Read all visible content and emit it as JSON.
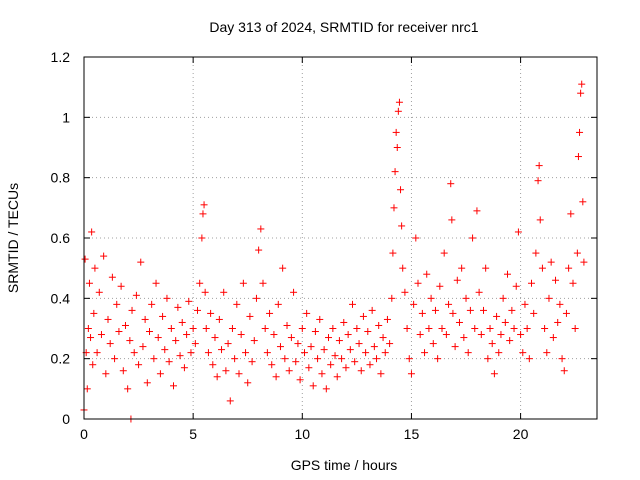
{
  "chart_data": {
    "type": "scatter",
    "title": "Day 313 of 2024, SRMTID for receiver nrc1",
    "xlabel": "GPS time / hours",
    "ylabel": "SRMTID / TECUs",
    "xlim": [
      0,
      23.5
    ],
    "ylim": [
      0,
      1.2
    ],
    "xticks": [
      0,
      5,
      10,
      15,
      20
    ],
    "yticks": [
      0,
      0.2,
      0.4,
      0.6,
      0.8,
      1,
      1.2
    ],
    "xtick_labels": [
      "0",
      "5",
      "10",
      "15",
      "20"
    ],
    "ytick_labels": [
      "0",
      "0.2",
      "0.4",
      "0.6",
      "0.8",
      "1",
      "1.2"
    ],
    "grid": true,
    "marker": "+",
    "color": "#ff0000",
    "series": [
      {
        "name": "SRMTID",
        "points": [
          [
            0.0,
            0.03
          ],
          [
            0.05,
            0.53
          ],
          [
            0.1,
            0.22
          ],
          [
            0.15,
            0.1
          ],
          [
            0.2,
            0.3
          ],
          [
            0.25,
            0.45
          ],
          [
            0.3,
            0.27
          ],
          [
            0.35,
            0.62
          ],
          [
            0.4,
            0.18
          ],
          [
            0.45,
            0.35
          ],
          [
            0.5,
            0.5
          ],
          [
            0.6,
            0.22
          ],
          [
            0.7,
            0.42
          ],
          [
            0.8,
            0.28
          ],
          [
            0.9,
            0.54
          ],
          [
            1.0,
            0.15
          ],
          [
            1.1,
            0.33
          ],
          [
            1.2,
            0.25
          ],
          [
            1.3,
            0.47
          ],
          [
            1.4,
            0.2
          ],
          [
            1.5,
            0.38
          ],
          [
            1.6,
            0.29
          ],
          [
            1.7,
            0.44
          ],
          [
            1.8,
            0.16
          ],
          [
            1.9,
            0.31
          ],
          [
            2.0,
            0.1
          ],
          [
            2.1,
            0.26
          ],
          [
            2.15,
            0.0
          ],
          [
            2.2,
            0.36
          ],
          [
            2.3,
            0.22
          ],
          [
            2.4,
            0.41
          ],
          [
            2.5,
            0.18
          ],
          [
            2.6,
            0.52
          ],
          [
            2.7,
            0.24
          ],
          [
            2.8,
            0.33
          ],
          [
            2.9,
            0.12
          ],
          [
            3.0,
            0.29
          ],
          [
            3.1,
            0.38
          ],
          [
            3.2,
            0.2
          ],
          [
            3.3,
            0.45
          ],
          [
            3.4,
            0.27
          ],
          [
            3.5,
            0.15
          ],
          [
            3.6,
            0.34
          ],
          [
            3.7,
            0.23
          ],
          [
            3.8,
            0.4
          ],
          [
            3.9,
            0.19
          ],
          [
            4.0,
            0.3
          ],
          [
            4.1,
            0.11
          ],
          [
            4.2,
            0.26
          ],
          [
            4.3,
            0.37
          ],
          [
            4.4,
            0.21
          ],
          [
            4.5,
            0.32
          ],
          [
            4.6,
            0.17
          ],
          [
            4.7,
            0.28
          ],
          [
            4.8,
            0.39
          ],
          [
            4.9,
            0.22
          ],
          [
            5.0,
            0.3
          ],
          [
            5.1,
            0.25
          ],
          [
            5.2,
            0.36
          ],
          [
            5.3,
            0.45
          ],
          [
            5.4,
            0.6
          ],
          [
            5.45,
            0.68
          ],
          [
            5.5,
            0.71
          ],
          [
            5.55,
            0.42
          ],
          [
            5.6,
            0.3
          ],
          [
            5.7,
            0.22
          ],
          [
            5.8,
            0.35
          ],
          [
            5.9,
            0.18
          ],
          [
            6.0,
            0.27
          ],
          [
            6.1,
            0.14
          ],
          [
            6.2,
            0.33
          ],
          [
            6.3,
            0.23
          ],
          [
            6.4,
            0.42
          ],
          [
            6.5,
            0.16
          ],
          [
            6.6,
            0.25
          ],
          [
            6.7,
            0.06
          ],
          [
            6.8,
            0.3
          ],
          [
            6.9,
            0.2
          ],
          [
            7.0,
            0.38
          ],
          [
            7.1,
            0.15
          ],
          [
            7.2,
            0.28
          ],
          [
            7.3,
            0.45
          ],
          [
            7.4,
            0.22
          ],
          [
            7.5,
            0.12
          ],
          [
            7.6,
            0.34
          ],
          [
            7.7,
            0.19
          ],
          [
            7.8,
            0.26
          ],
          [
            7.9,
            0.4
          ],
          [
            8.0,
            0.56
          ],
          [
            8.1,
            0.63
          ],
          [
            8.2,
            0.45
          ],
          [
            8.3,
            0.3
          ],
          [
            8.4,
            0.22
          ],
          [
            8.5,
            0.35
          ],
          [
            8.6,
            0.18
          ],
          [
            8.7,
            0.28
          ],
          [
            8.8,
            0.14
          ],
          [
            8.9,
            0.38
          ],
          [
            9.0,
            0.24
          ],
          [
            9.1,
            0.5
          ],
          [
            9.2,
            0.2
          ],
          [
            9.3,
            0.31
          ],
          [
            9.4,
            0.16
          ],
          [
            9.5,
            0.27
          ],
          [
            9.6,
            0.42
          ],
          [
            9.7,
            0.19
          ],
          [
            9.8,
            0.25
          ],
          [
            9.9,
            0.13
          ],
          [
            10.0,
            0.3
          ],
          [
            10.1,
            0.22
          ],
          [
            10.2,
            0.35
          ],
          [
            10.3,
            0.17
          ],
          [
            10.4,
            0.24
          ],
          [
            10.5,
            0.11
          ],
          [
            10.6,
            0.29
          ],
          [
            10.7,
            0.2
          ],
          [
            10.8,
            0.33
          ],
          [
            10.9,
            0.15
          ],
          [
            11.0,
            0.23
          ],
          [
            11.1,
            0.1
          ],
          [
            11.2,
            0.27
          ],
          [
            11.3,
            0.18
          ],
          [
            11.4,
            0.3
          ],
          [
            11.5,
            0.21
          ],
          [
            11.6,
            0.14
          ],
          [
            11.7,
            0.26
          ],
          [
            11.8,
            0.2
          ],
          [
            11.9,
            0.32
          ],
          [
            12.0,
            0.17
          ],
          [
            12.1,
            0.28
          ],
          [
            12.2,
            0.23
          ],
          [
            12.3,
            0.38
          ],
          [
            12.4,
            0.19
          ],
          [
            12.5,
            0.3
          ],
          [
            12.6,
            0.25
          ],
          [
            12.7,
            0.16
          ],
          [
            12.8,
            0.34
          ],
          [
            12.9,
            0.22
          ],
          [
            13.0,
            0.29
          ],
          [
            13.1,
            0.18
          ],
          [
            13.2,
            0.36
          ],
          [
            13.3,
            0.24
          ],
          [
            13.4,
            0.2
          ],
          [
            13.5,
            0.31
          ],
          [
            13.6,
            0.15
          ],
          [
            13.7,
            0.27
          ],
          [
            13.8,
            0.22
          ],
          [
            13.9,
            0.33
          ],
          [
            14.0,
            0.25
          ],
          [
            14.1,
            0.4
          ],
          [
            14.15,
            0.55
          ],
          [
            14.2,
            0.7
          ],
          [
            14.25,
            0.82
          ],
          [
            14.3,
            0.95
          ],
          [
            14.35,
            0.9
          ],
          [
            14.4,
            1.02
          ],
          [
            14.45,
            1.05
          ],
          [
            14.5,
            0.76
          ],
          [
            14.55,
            0.64
          ],
          [
            14.6,
            0.5
          ],
          [
            14.7,
            0.42
          ],
          [
            14.8,
            0.3
          ],
          [
            14.9,
            0.2
          ],
          [
            15.0,
            0.15
          ],
          [
            15.1,
            0.38
          ],
          [
            15.2,
            0.6
          ],
          [
            15.3,
            0.45
          ],
          [
            15.4,
            0.28
          ],
          [
            15.5,
            0.35
          ],
          [
            15.6,
            0.22
          ],
          [
            15.7,
            0.48
          ],
          [
            15.8,
            0.3
          ],
          [
            15.9,
            0.4
          ],
          [
            16.0,
            0.25
          ],
          [
            16.1,
            0.36
          ],
          [
            16.2,
            0.2
          ],
          [
            16.3,
            0.44
          ],
          [
            16.4,
            0.3
          ],
          [
            16.5,
            0.55
          ],
          [
            16.6,
            0.28
          ],
          [
            16.7,
            0.38
          ],
          [
            16.8,
            0.78
          ],
          [
            16.85,
            0.66
          ],
          [
            16.9,
            0.35
          ],
          [
            17.0,
            0.24
          ],
          [
            17.1,
            0.46
          ],
          [
            17.2,
            0.32
          ],
          [
            17.3,
            0.5
          ],
          [
            17.4,
            0.27
          ],
          [
            17.5,
            0.4
          ],
          [
            17.6,
            0.22
          ],
          [
            17.7,
            0.36
          ],
          [
            17.8,
            0.6
          ],
          [
            17.9,
            0.3
          ],
          [
            18.0,
            0.69
          ],
          [
            18.1,
            0.42
          ],
          [
            18.2,
            0.28
          ],
          [
            18.3,
            0.36
          ],
          [
            18.4,
            0.5
          ],
          [
            18.5,
            0.2
          ],
          [
            18.6,
            0.3
          ],
          [
            18.7,
            0.25
          ],
          [
            18.8,
            0.15
          ],
          [
            18.9,
            0.34
          ],
          [
            19.0,
            0.22
          ],
          [
            19.1,
            0.28
          ],
          [
            19.2,
            0.4
          ],
          [
            19.3,
            0.32
          ],
          [
            19.4,
            0.48
          ],
          [
            19.5,
            0.26
          ],
          [
            19.6,
            0.36
          ],
          [
            19.7,
            0.3
          ],
          [
            19.8,
            0.44
          ],
          [
            19.9,
            0.62
          ],
          [
            20.0,
            0.28
          ],
          [
            20.1,
            0.22
          ],
          [
            20.2,
            0.38
          ],
          [
            20.3,
            0.3
          ],
          [
            20.4,
            0.2
          ],
          [
            20.5,
            0.45
          ],
          [
            20.6,
            0.35
          ],
          [
            20.7,
            0.55
          ],
          [
            20.8,
            0.79
          ],
          [
            20.85,
            0.84
          ],
          [
            20.9,
            0.66
          ],
          [
            21.0,
            0.5
          ],
          [
            21.1,
            0.3
          ],
          [
            21.2,
            0.22
          ],
          [
            21.3,
            0.4
          ],
          [
            21.4,
            0.52
          ],
          [
            21.5,
            0.27
          ],
          [
            21.6,
            0.46
          ],
          [
            21.7,
            0.32
          ],
          [
            21.8,
            0.38
          ],
          [
            21.9,
            0.2
          ],
          [
            22.0,
            0.16
          ],
          [
            22.1,
            0.35
          ],
          [
            22.2,
            0.5
          ],
          [
            22.3,
            0.68
          ],
          [
            22.4,
            0.45
          ],
          [
            22.5,
            0.3
          ],
          [
            22.6,
            0.55
          ],
          [
            22.65,
            0.87
          ],
          [
            22.7,
            0.95
          ],
          [
            22.75,
            1.08
          ],
          [
            22.8,
            1.11
          ],
          [
            22.85,
            0.72
          ],
          [
            22.9,
            0.52
          ]
        ]
      }
    ]
  }
}
